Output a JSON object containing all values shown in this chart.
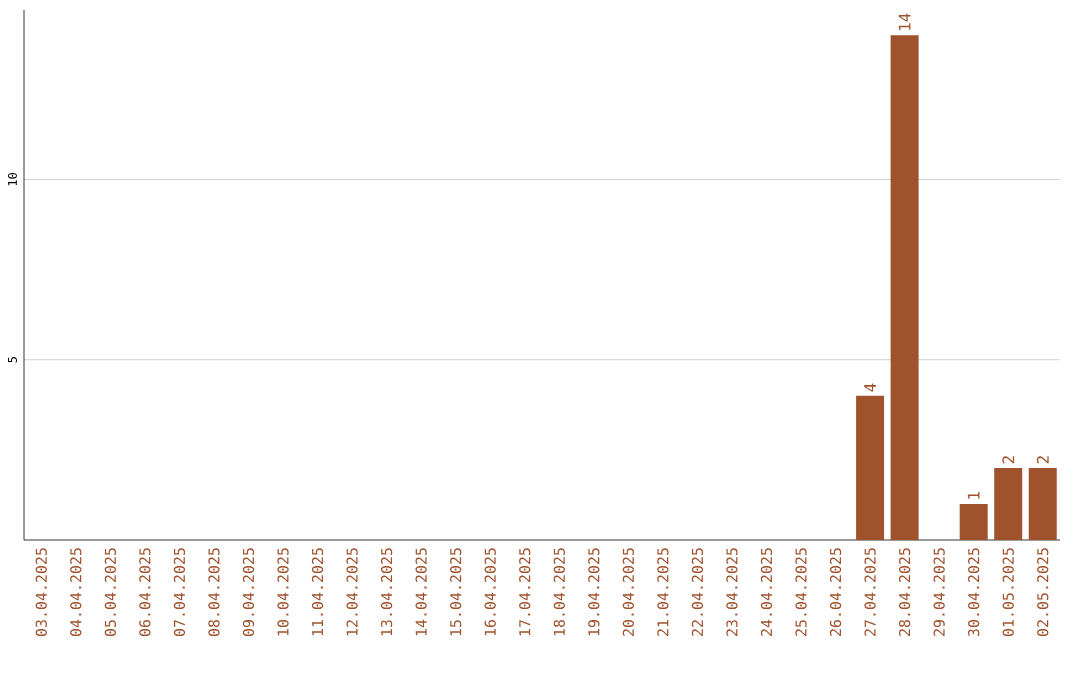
{
  "chart_data": {
    "type": "bar",
    "categories": [
      "03.04.2025",
      "04.04.2025",
      "05.04.2025",
      "06.04.2025",
      "07.04.2025",
      "08.04.2025",
      "09.04.2025",
      "10.04.2025",
      "11.04.2025",
      "12.04.2025",
      "13.04.2025",
      "14.04.2025",
      "15.04.2025",
      "16.04.2025",
      "17.04.2025",
      "18.04.2025",
      "19.04.2025",
      "20.04.2025",
      "21.04.2025",
      "22.04.2025",
      "23.04.2025",
      "24.04.2025",
      "25.04.2025",
      "26.04.2025",
      "27.04.2025",
      "28.04.2025",
      "29.04.2025",
      "30.04.2025",
      "01.05.2025",
      "02.05.2025"
    ],
    "values": [
      0,
      0,
      0,
      0,
      0,
      0,
      0,
      0,
      0,
      0,
      0,
      0,
      0,
      0,
      0,
      0,
      0,
      0,
      0,
      0,
      0,
      0,
      0,
      0,
      4,
      14,
      0,
      1,
      2,
      2
    ],
    "value_labels": [
      null,
      null,
      null,
      null,
      null,
      null,
      null,
      null,
      null,
      null,
      null,
      null,
      null,
      null,
      null,
      null,
      null,
      null,
      null,
      null,
      null,
      null,
      null,
      null,
      "4",
      "14",
      null,
      "1",
      "2",
      "2"
    ],
    "color": "#a0522d",
    "ylim": [
      0,
      14.7
    ],
    "yticks": [
      5,
      10
    ],
    "grid": "y"
  }
}
